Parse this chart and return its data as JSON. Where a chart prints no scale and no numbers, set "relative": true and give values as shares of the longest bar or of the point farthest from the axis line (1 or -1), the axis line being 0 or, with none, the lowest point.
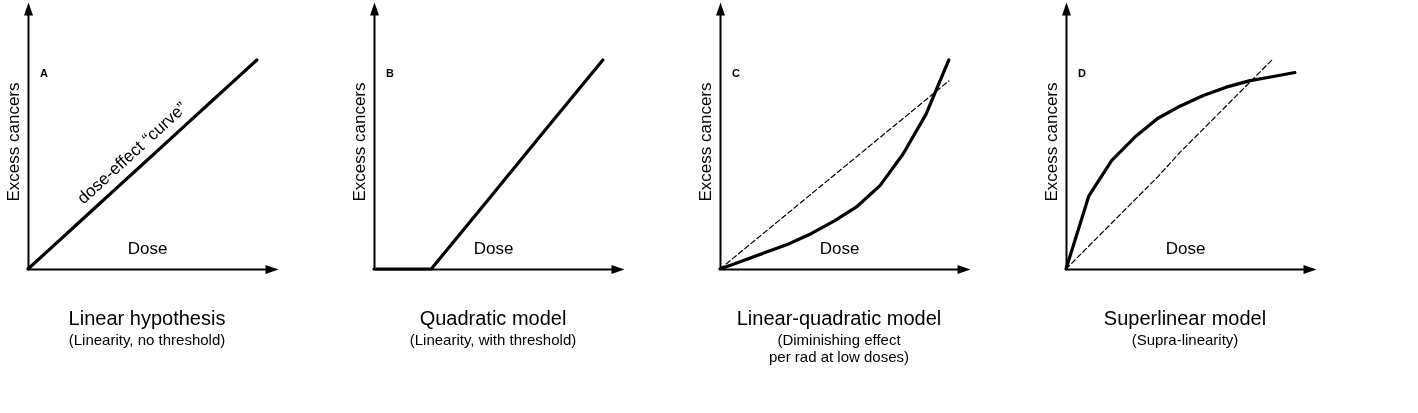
{
  "chart_data": [
    {
      "type": "line",
      "relative": true,
      "title": "Linear hypothesis",
      "subtitle": "(Linearity, no threshold)",
      "xlabel": "Dose",
      "ylabel": "Excess cancers",
      "annotations": [
        "A",
        "dose-effect “curve”"
      ],
      "categories": [
        null,
        null,
        null,
        null,
        null,
        null,
        null,
        null,
        null,
        null,
        null
      ],
      "series": [
        {
          "color": "#000000",
          "values": [
            0,
            0.1,
            0.2,
            0.3,
            0.4,
            0.5,
            0.6,
            0.7,
            0.8,
            0.9,
            1
          ]
        }
      ]
    },
    {
      "type": "line",
      "relative": true,
      "title": "Quadratic model",
      "subtitle": "(Linearity, with threshold)",
      "xlabel": "Dose",
      "ylabel": "Excess cancers",
      "annotations": [
        "B"
      ],
      "categories": [
        null,
        null,
        null,
        null,
        null
      ],
      "series": [
        {
          "color": "#000000",
          "values": [
            0,
            0,
            0.333,
            0.667,
            1
          ]
        }
      ]
    },
    {
      "type": "line",
      "relative": true,
      "title": "Linear-quadratic model",
      "subtitle": "(Diminishing effect\nper rad at low doses)",
      "xlabel": "Dose",
      "ylabel": "Excess cancers",
      "annotations": [
        "C"
      ],
      "categories": [
        null,
        null,
        null,
        null,
        null,
        null,
        null,
        null,
        null,
        null,
        null
      ],
      "series": [
        {
          "color": "#000000",
          "values": [
            0,
            0.04,
            0.08,
            0.12,
            0.17,
            0.23,
            0.3,
            0.4,
            0.55,
            0.74,
            1
          ]
        },
        {
          "color": "#000000",
          "line_style": "dashed",
          "values": [
            0,
            0.09,
            0.18,
            0.27,
            0.36,
            0.45,
            0.54,
            0.63,
            0.72,
            0.81,
            0.9
          ]
        }
      ]
    },
    {
      "type": "line",
      "relative": true,
      "title": "Superlinear model",
      "subtitle": "(Supra-linearity)",
      "xlabel": "Dose",
      "ylabel": "Excess cancers",
      "annotations": [
        "D"
      ],
      "categories": [
        null,
        null,
        null,
        null,
        null,
        null,
        null,
        null,
        null,
        null,
        null
      ],
      "series": [
        {
          "color": "#000000",
          "values": [
            0,
            0.35,
            0.52,
            0.63,
            0.72,
            0.78,
            0.83,
            0.87,
            0.9,
            0.92,
            0.94
          ]
        },
        {
          "color": "#000000",
          "line_style": "dashed",
          "values": [
            0,
            0.11,
            0.22,
            0.33,
            0.44,
            0.56,
            0.67,
            0.78,
            0.89,
            1,
            null
          ]
        }
      ]
    }
  ]
}
